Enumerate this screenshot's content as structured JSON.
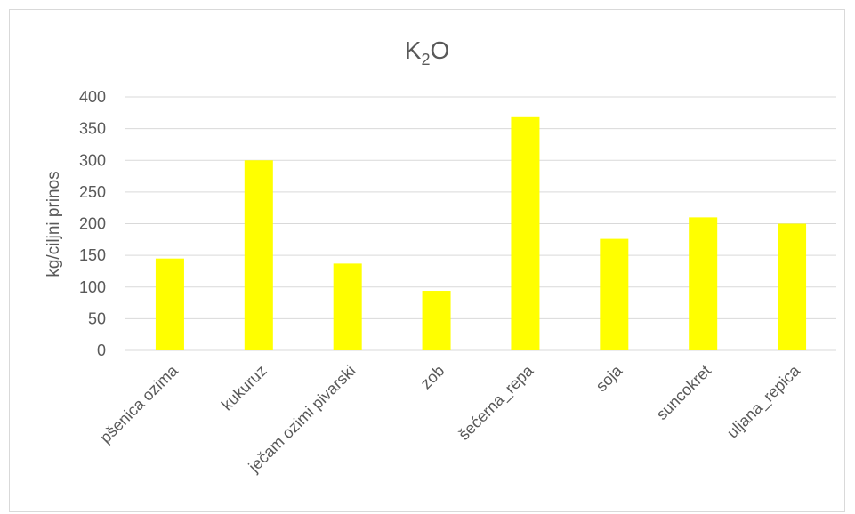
{
  "chart_data": {
    "type": "bar",
    "title": {
      "main": "K",
      "subscript": "2",
      "suffix": "O"
    },
    "ylabel": "kg/ciljni prinos",
    "xlabel": "",
    "ylim": [
      0,
      400
    ],
    "yticks": [
      0,
      50,
      100,
      150,
      200,
      250,
      300,
      350,
      400
    ],
    "grid": true,
    "legend": "none",
    "bar_color": "#ffff00",
    "grid_color": "#d9d9d9",
    "categories": [
      "pšenica ozima",
      "kukuruz",
      "ječam ozimi pivarski",
      "zob",
      "šećerna_repa",
      "soja",
      "suncokret",
      "uljana_repica"
    ],
    "values": [
      145,
      300,
      137,
      94,
      368,
      176,
      210,
      200
    ]
  }
}
